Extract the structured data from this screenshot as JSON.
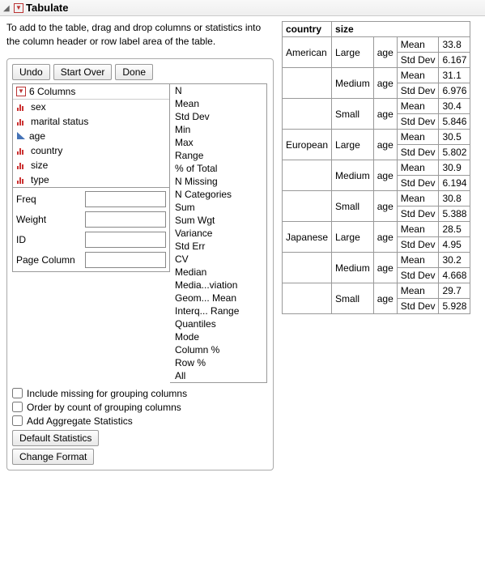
{
  "panel": {
    "title": "Tabulate",
    "instructions": "To add to the table, drag and drop columns or statistics into the column header or row label area of the table."
  },
  "buttons": {
    "undo": "Undo",
    "start_over": "Start Over",
    "done": "Done",
    "default_stats": "Default Statistics",
    "change_format": "Change Format"
  },
  "columns_header": "6 Columns",
  "columns": [
    {
      "name": "sex",
      "icon": "bar"
    },
    {
      "name": "marital status",
      "icon": "bar"
    },
    {
      "name": "age",
      "icon": "tri"
    },
    {
      "name": "country",
      "icon": "bar"
    },
    {
      "name": "size",
      "icon": "bar"
    },
    {
      "name": "type",
      "icon": "bar"
    }
  ],
  "stats": [
    "N",
    "Mean",
    "Std Dev",
    "Min",
    "Max",
    "Range",
    "% of Total",
    "N Missing",
    "N Categories",
    "Sum",
    "Sum Wgt",
    "Variance",
    "Std Err",
    "CV",
    "Median",
    "Media...viation",
    "Geom... Mean",
    "Interq... Range",
    "Quantiles",
    "Mode",
    "Column %",
    "Row %",
    "All"
  ],
  "fields": {
    "freq_label": "Freq",
    "weight_label": "Weight",
    "id_label": "ID",
    "page_col_label": "Page Column"
  },
  "checkboxes": {
    "include_missing": "Include missing for grouping columns",
    "order_by_count": "Order by count of grouping columns",
    "add_aggregate": "Add Aggregate Statistics"
  },
  "table": {
    "headers": {
      "country": "country",
      "size": "size"
    },
    "subhead": {
      "agecol": "age",
      "mean": "Mean",
      "stddev": "Std Dev"
    },
    "rows": [
      {
        "country": "American",
        "size": "Large",
        "var": "age",
        "mean": "33.8",
        "stddev": "6.167"
      },
      {
        "country": "",
        "size": "Medium",
        "var": "age",
        "mean": "31.1",
        "stddev": "6.976"
      },
      {
        "country": "",
        "size": "Small",
        "var": "age",
        "mean": "30.4",
        "stddev": "5.846"
      },
      {
        "country": "European",
        "size": "Large",
        "var": "age",
        "mean": "30.5",
        "stddev": "5.802"
      },
      {
        "country": "",
        "size": "Medium",
        "var": "age",
        "mean": "30.9",
        "stddev": "6.194"
      },
      {
        "country": "",
        "size": "Small",
        "var": "age",
        "mean": "30.8",
        "stddev": "5.388"
      },
      {
        "country": "Japanese",
        "size": "Large",
        "var": "age",
        "mean": "28.5",
        "stddev": "4.95"
      },
      {
        "country": "",
        "size": "Medium",
        "var": "age",
        "mean": "30.2",
        "stddev": "4.668"
      },
      {
        "country": "",
        "size": "Small",
        "var": "age",
        "mean": "29.7",
        "stddev": "5.928"
      }
    ]
  }
}
